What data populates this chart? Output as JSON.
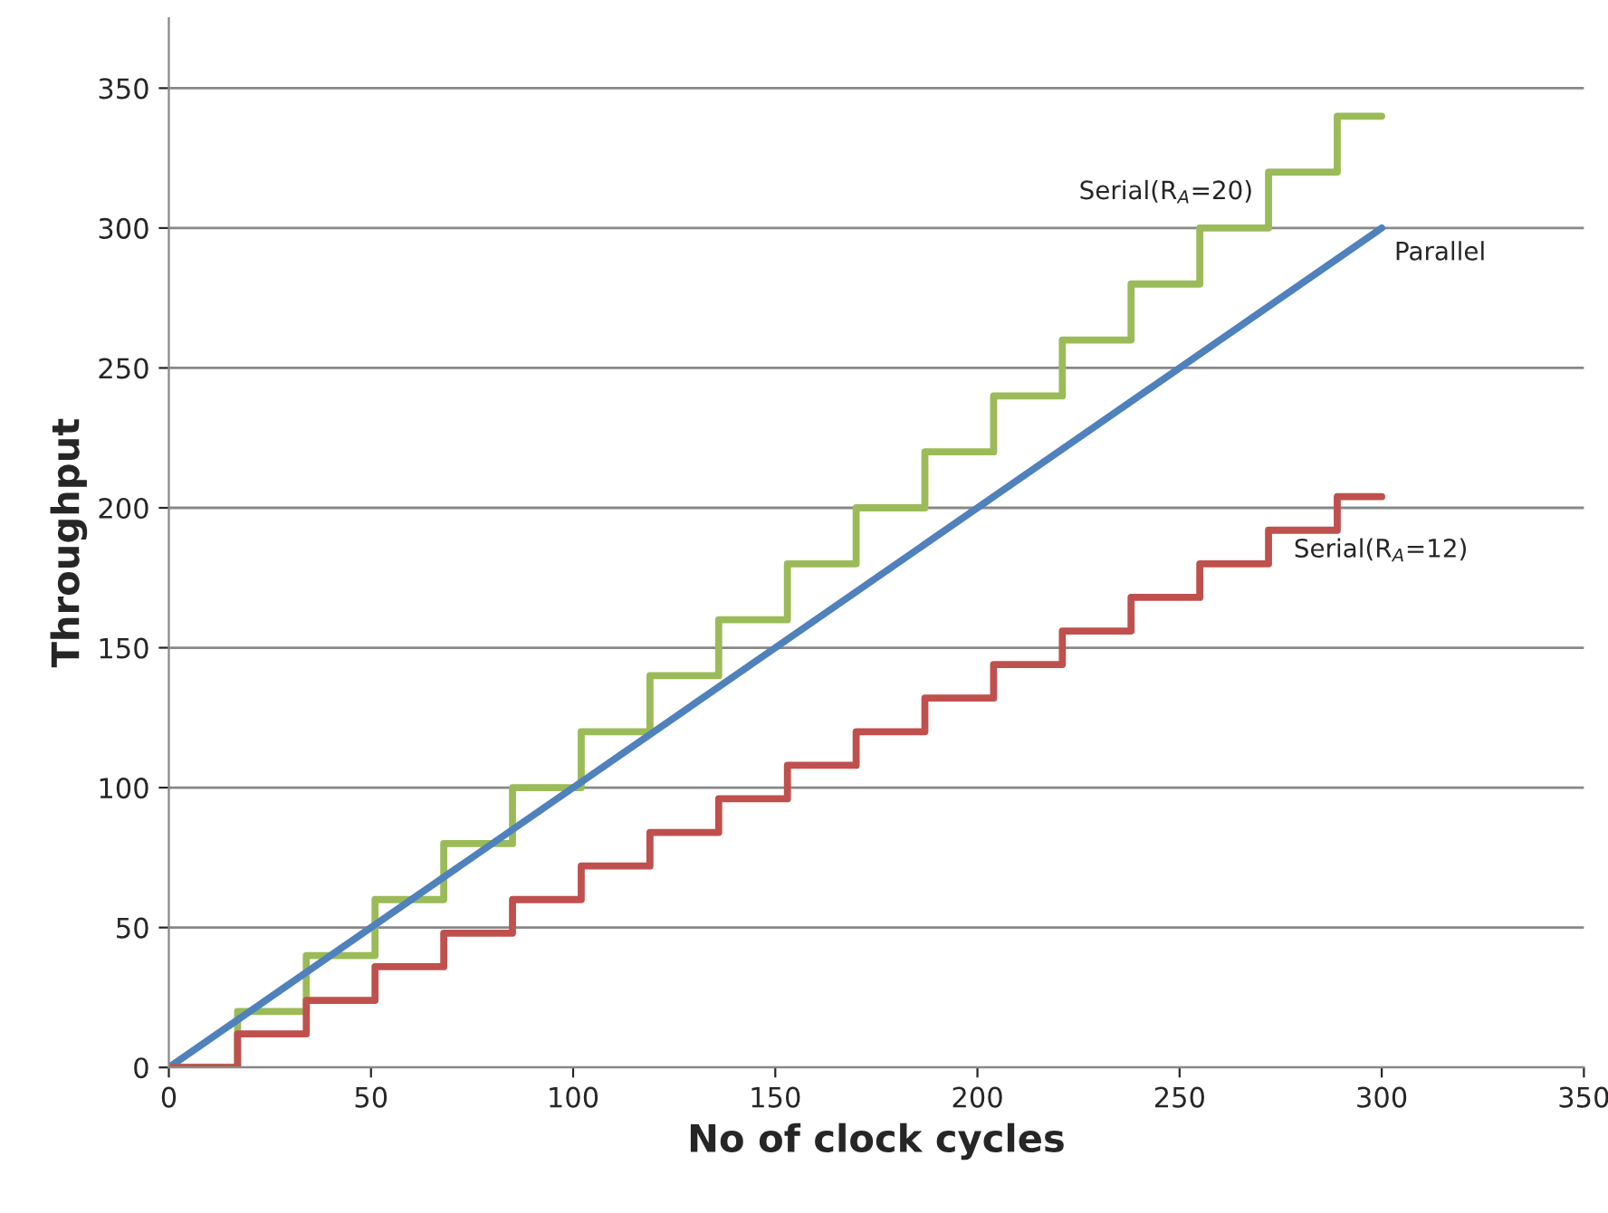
{
  "chart_data": {
    "type": "step",
    "xlabel": "No of clock cycles",
    "ylabel": "Throughput",
    "xlim": [
      0,
      350
    ],
    "ylim": [
      0,
      375
    ],
    "xticks": [
      0,
      50,
      100,
      150,
      200,
      250,
      300,
      350
    ],
    "yticks": [
      0,
      50,
      100,
      150,
      200,
      250,
      300,
      350
    ],
    "grid": "y",
    "legend": false,
    "series": [
      {
        "name": "Serial(R$_{A}$=20)",
        "color": "#9bbb59",
        "x": [
          0,
          17,
          34,
          51,
          68,
          85,
          102,
          119,
          136,
          153,
          170,
          187,
          204,
          221,
          238,
          255,
          272,
          289,
          300
        ],
        "values": [
          0,
          20,
          40,
          60,
          80,
          100,
          120,
          140,
          160,
          180,
          200,
          220,
          240,
          260,
          280,
          300,
          320,
          340,
          340
        ]
      },
      {
        "name": "Parallel",
        "color": "#4f81bd",
        "type": "line",
        "x": [
          0,
          300
        ],
        "values": [
          0,
          300
        ]
      },
      {
        "name": "Serial(R$_{A}$=12)",
        "color": "#c0504d",
        "x": [
          0,
          17,
          34,
          51,
          68,
          85,
          102,
          119,
          136,
          153,
          170,
          187,
          204,
          221,
          238,
          255,
          272,
          289,
          300
        ],
        "values": [
          0,
          12,
          24,
          36,
          48,
          60,
          72,
          84,
          96,
          108,
          120,
          132,
          144,
          156,
          168,
          180,
          192,
          204,
          204
        ]
      }
    ]
  }
}
